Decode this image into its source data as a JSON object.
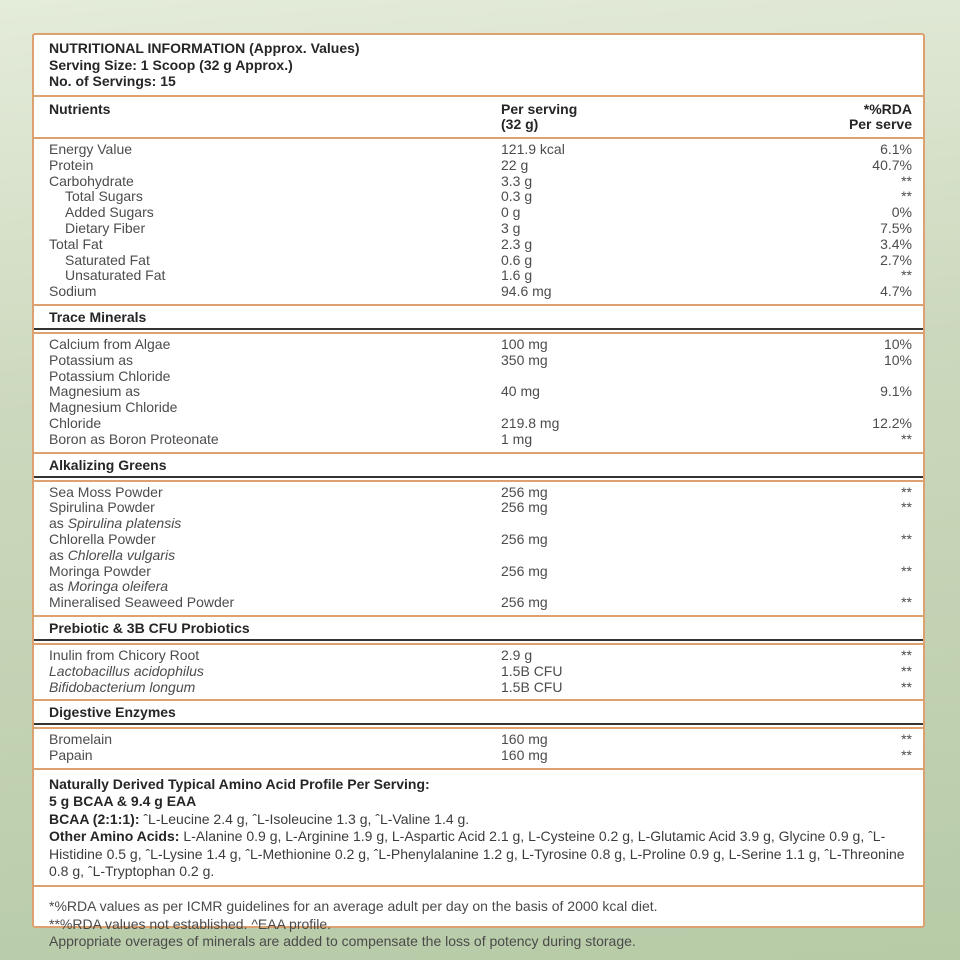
{
  "header": {
    "title": "NUTRITIONAL INFORMATION (Approx. Values)",
    "serving_size": "Serving Size: 1 Scoop (32 g Approx.)",
    "servings": "No. of Servings: 15"
  },
  "columns": {
    "nutrients": "Nutrients",
    "per_serving_1": "Per serving",
    "per_serving_2": "(32 g)",
    "rda_1": "*%RDA",
    "rda_2": "Per serve"
  },
  "sections": [
    {
      "title": "",
      "rows": [
        {
          "lines": [
            {
              "plain": "Energy Value"
            }
          ],
          "value": "121.9 kcal",
          "rda": "6.1%"
        },
        {
          "lines": [
            {
              "plain": "Protein"
            }
          ],
          "value": "22 g",
          "rda": "40.7%"
        },
        {
          "lines": [
            {
              "plain": "Carbohydrate"
            }
          ],
          "value": "3.3 g",
          "rda": "**"
        },
        {
          "indent": true,
          "lines": [
            {
              "plain": "Total Sugars"
            }
          ],
          "value": "0.3 g",
          "rda": "**"
        },
        {
          "indent": true,
          "lines": [
            {
              "plain": "Added Sugars"
            }
          ],
          "value": "0 g",
          "rda": "0%"
        },
        {
          "indent": true,
          "lines": [
            {
              "plain": "Dietary Fiber"
            }
          ],
          "value": "3 g",
          "rda": "7.5%"
        },
        {
          "lines": [
            {
              "plain": "Total Fat"
            }
          ],
          "value": "2.3 g",
          "rda": "3.4%"
        },
        {
          "indent": true,
          "lines": [
            {
              "plain": "Saturated Fat"
            }
          ],
          "value": "0.6 g",
          "rda": "2.7%"
        },
        {
          "indent": true,
          "lines": [
            {
              "plain": "Unsaturated Fat"
            }
          ],
          "value": "1.6 g",
          "rda": "**"
        },
        {
          "lines": [
            {
              "plain": "Sodium"
            }
          ],
          "value": "94.6 mg",
          "rda": "4.7%"
        }
      ]
    },
    {
      "title": "Trace Minerals",
      "rows": [
        {
          "lines": [
            {
              "plain": "Calcium from Algae"
            }
          ],
          "value": "100 mg",
          "rda": "10%"
        },
        {
          "lines": [
            {
              "plain": "Potassium as"
            },
            {
              "plain": "Potassium Chloride"
            }
          ],
          "value": "350 mg",
          "rda": "10%"
        },
        {
          "lines": [
            {
              "plain": "Magnesium as"
            },
            {
              "plain": "Magnesium Chloride"
            }
          ],
          "value": "40 mg",
          "rda": "9.1%"
        },
        {
          "lines": [
            {
              "plain": "Chloride"
            }
          ],
          "value": "219.8 mg",
          "rda": "12.2%"
        },
        {
          "lines": [
            {
              "plain": "Boron as Boron Proteonate"
            }
          ],
          "value": "1 mg",
          "rda": "**"
        }
      ]
    },
    {
      "title": "Alkalizing Greens",
      "rows": [
        {
          "lines": [
            {
              "plain": "Sea Moss Powder"
            }
          ],
          "value": "256 mg",
          "rda": "**"
        },
        {
          "lines": [
            {
              "plain": "Spirulina Powder"
            },
            {
              "plain": "as ",
              "italic": "Spirulina platensis"
            }
          ],
          "value": "256 mg",
          "rda": "**"
        },
        {
          "lines": [
            {
              "plain": "Chlorella Powder"
            },
            {
              "plain": "as ",
              "italic": "Chlorella vulgaris"
            }
          ],
          "value": "256 mg",
          "rda": "**"
        },
        {
          "lines": [
            {
              "plain": "Moringa Powder"
            },
            {
              "plain": "as ",
              "italic": "Moringa oleifera"
            }
          ],
          "value": "256 mg",
          "rda": "**"
        },
        {
          "lines": [
            {
              "plain": "Mineralised Seaweed Powder"
            }
          ],
          "value": "256 mg",
          "rda": "**"
        }
      ]
    },
    {
      "title": "Prebiotic & 3B CFU Probiotics",
      "rows": [
        {
          "lines": [
            {
              "plain": "Inulin from Chicory Root"
            }
          ],
          "value": "2.9 g",
          "rda": "**"
        },
        {
          "lines": [
            {
              "italic": "Lactobacillus acidophilus"
            }
          ],
          "value": "1.5B CFU",
          "rda": "**"
        },
        {
          "lines": [
            {
              "italic": "Bifidobacterium longum"
            }
          ],
          "value": "1.5B CFU",
          "rda": "**"
        }
      ]
    },
    {
      "title": "Digestive Enzymes",
      "rows": [
        {
          "lines": [
            {
              "plain": "Bromelain"
            }
          ],
          "value": "160 mg",
          "rda": "**"
        },
        {
          "lines": [
            {
              "plain": "Papain"
            }
          ],
          "value": "160 mg",
          "rda": "**"
        }
      ]
    }
  ],
  "amino": {
    "heading1": "Naturally Derived Typical Amino Acid Profile Per Serving:",
    "heading2": "5 g BCAA & 9.4 g EAA",
    "bcaa_label": "BCAA (2:1:1):",
    "bcaa_text": "ˆL-Leucine 2.4 g, ˆL-Isoleucine 1.3 g, ˆL-Valine 1.4 g.",
    "other_label": "Other Amino Acids:",
    "other_text": "L-Alanine 0.9 g, L-Arginine 1.9 g, L-Aspartic Acid 2.1 g, L-Cysteine 0.2 g, L-Glutamic Acid 3.9 g, Glycine 0.9 g, ˆL-Histidine 0.5 g, ˆL-Lysine 1.4 g, ˆL-Methionine 0.2 g, ˆL-Phenylalanine 1.2 g, L-Tyrosine 0.8 g, L-Proline 0.9 g, L-Serine 1.1 g, ˆL-Threonine 0.8 g, ˆL-Tryptophan 0.2 g."
  },
  "footnotes": [
    "*%RDA values as per ICMR guidelines for an average adult per day on the basis of 2000 kcal diet.",
    "**%RDA values not established. ^EAA profile.",
    "Appropriate overages of minerals are added to compensate the loss of potency during storage."
  ],
  "colors": {
    "accent_border": "#dda06f",
    "underline": "#333333",
    "bg_top": "#e4ecda",
    "bg_bottom": "#b7cba7",
    "card_bg": "#ffffff",
    "text": "#4c4c4c",
    "heading_text": "#262626"
  }
}
